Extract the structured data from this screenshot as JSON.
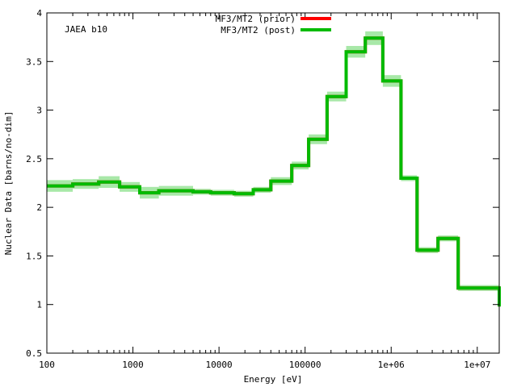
{
  "chart_data": {
    "type": "line",
    "title": "",
    "annotation": "JAEA b10",
    "xlabel": "Energy [eV]",
    "ylabel": "Nuclear Data [barns/no-dim]",
    "xscale": "log",
    "xlim": [
      100,
      18000000
    ],
    "ylim": [
      0.5,
      4
    ],
    "grid": false,
    "legend_position": "top-center",
    "x_tick_values": [
      100,
      1000,
      10000,
      100000,
      1000000,
      10000000
    ],
    "x_tick_labels": [
      "100",
      "1000",
      "10000",
      "100000",
      "1e+06",
      "1e+07"
    ],
    "y_tick_values": [
      0.5,
      1,
      1.5,
      2,
      2.5,
      3,
      3.5,
      4
    ],
    "y_tick_labels": [
      "0.5",
      "1",
      "1.5",
      "2",
      "2.5",
      "3",
      "3.5",
      "4"
    ],
    "bin_edges": [
      100,
      200,
      400,
      700,
      1200,
      2000,
      5000,
      8000,
      15000,
      25000,
      40000,
      70000,
      110000,
      180000,
      300000,
      500000,
      800000,
      1300000,
      2000000,
      3500000,
      6000000,
      18000000
    ],
    "series": [
      {
        "name": "MF3/MT2 (prior)",
        "color": "#ff0000",
        "values": [
          2.22,
          2.24,
          2.26,
          2.21,
          2.15,
          2.17,
          2.16,
          2.15,
          2.14,
          2.18,
          2.27,
          2.43,
          2.7,
          3.14,
          3.6,
          3.74,
          3.3,
          2.3,
          1.56,
          1.68,
          1.17,
          0.98
        ]
      },
      {
        "name": "MF3/MT2 (post)",
        "color": "#00bb00",
        "band_color": "#a8e8a8",
        "values": [
          2.22,
          2.24,
          2.26,
          2.21,
          2.15,
          2.17,
          2.16,
          2.15,
          2.14,
          2.18,
          2.27,
          2.43,
          2.7,
          3.14,
          3.6,
          3.74,
          3.3,
          2.3,
          1.56,
          1.68,
          1.17,
          0.98
        ],
        "uncertainty": [
          0.06,
          0.05,
          0.06,
          0.05,
          0.06,
          0.05,
          0.03,
          0.03,
          0.03,
          0.03,
          0.04,
          0.04,
          0.05,
          0.05,
          0.06,
          0.07,
          0.06,
          0.03,
          0.03,
          0.03,
          0.03,
          0.03
        ]
      }
    ]
  }
}
